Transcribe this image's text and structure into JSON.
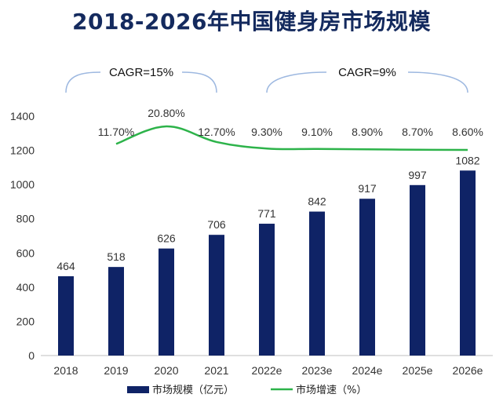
{
  "chart_data": {
    "type": "bar",
    "title": "2018-2026年中国健身房市场规模",
    "categories": [
      "2018",
      "2019",
      "2020",
      "2021",
      "2022e",
      "2023e",
      "2024e",
      "2025e",
      "2026e"
    ],
    "series": [
      {
        "name": "市场规模（亿元）",
        "type": "bar",
        "values": [
          464,
          518,
          626,
          706,
          771,
          842,
          917,
          997,
          1082
        ],
        "labels": [
          "464",
          "518",
          "626",
          "706",
          "771",
          "842",
          "917",
          "997",
          "1082"
        ],
        "color": "#0f2366"
      },
      {
        "name": "市场增速（%）",
        "type": "line",
        "values": [
          null,
          11.7,
          20.8,
          12.7,
          9.3,
          9.1,
          8.9,
          8.7,
          8.6
        ],
        "labels": [
          "",
          "11.70%",
          "20.80%",
          "12.70%",
          "9.30%",
          "9.10%",
          "8.90%",
          "8.70%",
          "8.60%"
        ],
        "color": "#2db34a"
      }
    ],
    "yticks": [
      "0",
      "200",
      "400",
      "600",
      "800",
      "1000",
      "1200",
      "1400"
    ],
    "ylim": [
      0,
      1400
    ],
    "xlabel": "",
    "ylabel": "",
    "grid": false,
    "legend_position": "bottom",
    "annotations": [
      {
        "text": "CAGR=15%",
        "span": [
          "2018",
          "2021"
        ]
      },
      {
        "text": "CAGR=9%",
        "span": [
          "2022e",
          "2026e"
        ]
      }
    ]
  }
}
